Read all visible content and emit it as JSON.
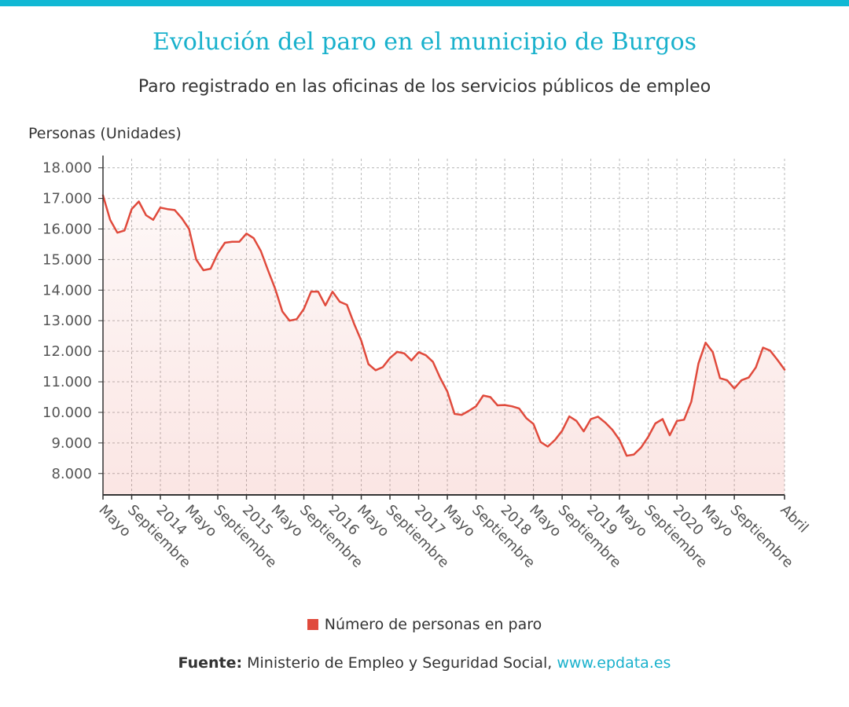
{
  "colors": {
    "accent": "#11b8d4",
    "title": "#19b1cc",
    "series": "#e04a3c",
    "area": "#fbe3e1"
  },
  "title": "Evolución del paro en el municipio de Burgos",
  "subtitle": "Paro registrado en las oficinas de los servicios públicos de empleo",
  "legend": {
    "label": "Número de personas en paro"
  },
  "source": {
    "label": "Fuente:",
    "text": " Ministerio de Empleo y Seguridad Social, ",
    "link": "www.epdata.es"
  },
  "chart_data": {
    "type": "area",
    "ylabel": "Personas (Unidades)",
    "ylim": [
      7300,
      18300
    ],
    "yticks": [
      8000,
      9000,
      10000,
      11000,
      12000,
      13000,
      14000,
      15000,
      16000,
      17000,
      18000
    ],
    "ytick_labels": [
      "8.000",
      "9.000",
      "10.000",
      "11.000",
      "12.000",
      "13.000",
      "14.000",
      "15.000",
      "16.000",
      "17.000",
      "18.000"
    ],
    "grid": true,
    "legend_position": "bottom",
    "xticks": [
      {
        "index": 0,
        "label": "Mayo"
      },
      {
        "index": 4,
        "label": "Septiembre"
      },
      {
        "index": 8,
        "label": "2014"
      },
      {
        "index": 12,
        "label": "Mayo"
      },
      {
        "index": 16,
        "label": "Septiembre"
      },
      {
        "index": 20,
        "label": "2015"
      },
      {
        "index": 24,
        "label": "Mayo"
      },
      {
        "index": 28,
        "label": "Septiembre"
      },
      {
        "index": 32,
        "label": "2016"
      },
      {
        "index": 36,
        "label": "Mayo"
      },
      {
        "index": 40,
        "label": "Septiembre"
      },
      {
        "index": 44,
        "label": "2017"
      },
      {
        "index": 48,
        "label": "Mayo"
      },
      {
        "index": 52,
        "label": "Septiembre"
      },
      {
        "index": 56,
        "label": "2018"
      },
      {
        "index": 60,
        "label": "Mayo"
      },
      {
        "index": 64,
        "label": "Septiembre"
      },
      {
        "index": 68,
        "label": "2019"
      },
      {
        "index": 72,
        "label": "Mayo"
      },
      {
        "index": 76,
        "label": "Septiembre"
      },
      {
        "index": 80,
        "label": "2020"
      },
      {
        "index": 84,
        "label": "Mayo"
      },
      {
        "index": 88,
        "label": "Septiembre"
      },
      {
        "index": 95,
        "label": "Abril"
      }
    ],
    "series": [
      {
        "name": "Número de personas en paro",
        "values": [
          17100,
          16300,
          15880,
          15950,
          16650,
          16900,
          16450,
          16300,
          16700,
          16650,
          16620,
          16350,
          16000,
          15000,
          14650,
          14700,
          15200,
          15550,
          15580,
          15580,
          15850,
          15700,
          15280,
          14650,
          14050,
          13300,
          13000,
          13050,
          13380,
          13950,
          13950,
          13500,
          13950,
          13620,
          13520,
          12900,
          12350,
          11580,
          11380,
          11480,
          11780,
          11980,
          11930,
          11700,
          11970,
          11870,
          11650,
          11130,
          10680,
          9950,
          9920,
          10050,
          10200,
          10550,
          10500,
          10230,
          10240,
          10200,
          10130,
          9810,
          9620,
          9030,
          8880,
          9100,
          9400,
          9870,
          9720,
          9380,
          9780,
          9860,
          9670,
          9430,
          9100,
          8580,
          8620,
          8850,
          9200,
          9640,
          9780,
          9250,
          9720,
          9760,
          10350,
          11600,
          12280,
          11970,
          11120,
          11050,
          10780,
          11050,
          11140,
          11470,
          12120,
          12020,
          11720,
          11400
        ]
      }
    ]
  }
}
